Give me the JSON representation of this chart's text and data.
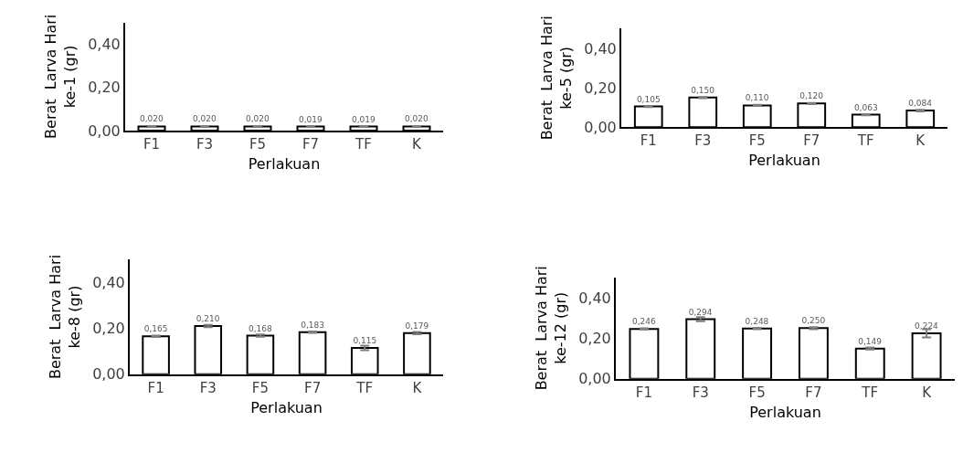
{
  "chart_data": [
    {
      "type": "bar",
      "ylabel": "Berat  Larva Hari ke-1 (gr)",
      "xlabel": "Perlakuan",
      "categories": [
        "F1",
        "F3",
        "F5",
        "F7",
        "TF",
        "K"
      ],
      "color": "#ffffff",
      "values": [
        0.02,
        0.02,
        0.02,
        0.019,
        0.019,
        0.02
      ],
      "value_labels": [
        "0,020",
        "0,020",
        "0,020",
        "0,019",
        "0,019",
        "0,020"
      ],
      "errors": [
        0.002,
        0.002,
        0.002,
        0.002,
        0.002,
        0.002
      ],
      "ylim": [
        0,
        0.5
      ],
      "yticks": [
        {
          "value": 0,
          "label": "0,00"
        },
        {
          "value": 0.2,
          "label": "0,20"
        },
        {
          "value": 0.4,
          "label": "0,40"
        }
      ]
    },
    {
      "type": "bar",
      "ylabel": "Berat  Larva Hari ke-5 (gr)",
      "xlabel": "Perlakuan",
      "categories": [
        "F1",
        "F3",
        "F5",
        "F7",
        "TF",
        "K"
      ],
      "color": "#ffffff",
      "values": [
        0.105,
        0.15,
        0.11,
        0.12,
        0.063,
        0.084
      ],
      "value_labels": [
        "0,105",
        "0,150",
        "0,110",
        "0,120",
        "0,063",
        "0,084"
      ],
      "errors": [
        0.003,
        0.003,
        0.003,
        0.003,
        0.003,
        0.004
      ],
      "ylim": [
        0,
        0.5
      ],
      "yticks": [
        {
          "value": 0,
          "label": "0,00"
        },
        {
          "value": 0.2,
          "label": "0,20"
        },
        {
          "value": 0.4,
          "label": "0,40"
        }
      ]
    },
    {
      "type": "bar",
      "ylabel": "Berat  Larva Hari ke-8 (gr)",
      "xlabel": "Perlakuan",
      "categories": [
        "F1",
        "F3",
        "F5",
        "F7",
        "TF",
        "K"
      ],
      "color": "#ffffff",
      "values": [
        0.165,
        0.21,
        0.168,
        0.183,
        0.115,
        0.179
      ],
      "value_labels": [
        "0,165",
        "0,210",
        "0,168",
        "0,183",
        "0,115",
        "0,179"
      ],
      "errors": [
        0.003,
        0.005,
        0.005,
        0.003,
        0.01,
        0.005
      ],
      "ylim": [
        0,
        0.5
      ],
      "yticks": [
        {
          "value": 0,
          "label": "0,00"
        },
        {
          "value": 0.2,
          "label": "0,20"
        },
        {
          "value": 0.4,
          "label": "0,40"
        }
      ]
    },
    {
      "type": "bar",
      "ylabel": "Berat  Larva Hari ke-12 (gr)",
      "xlabel": "Perlakuan",
      "categories": [
        "F1",
        "F3",
        "F5",
        "F7",
        "TF",
        "K"
      ],
      "color": "#ffffff",
      "values": [
        0.246,
        0.294,
        0.248,
        0.25,
        0.149,
        0.224
      ],
      "value_labels": [
        "0,246",
        "0,294",
        "0,248",
        "0,250",
        "0,149",
        "0,224"
      ],
      "errors": [
        0.003,
        0.01,
        0.003,
        0.005,
        0.005,
        0.02
      ],
      "ylim": [
        0,
        0.5
      ],
      "yticks": [
        {
          "value": 0,
          "label": "0,00"
        },
        {
          "value": 0.2,
          "label": "0,20"
        },
        {
          "value": 0.4,
          "label": "0,40"
        }
      ]
    }
  ]
}
